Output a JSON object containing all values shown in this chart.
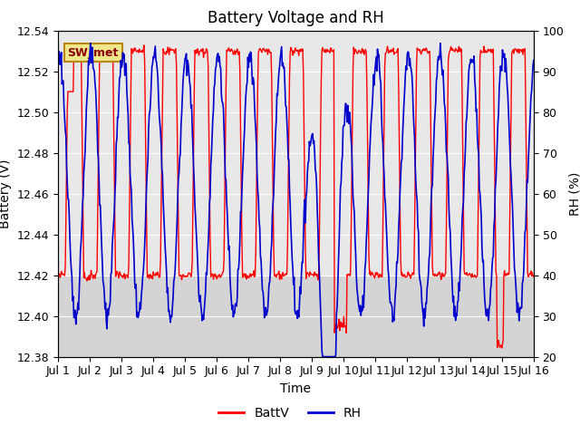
{
  "title": "Battery Voltage and RH",
  "xlabel": "Time",
  "ylabel_left": "Battery (V)",
  "ylabel_right": "RH (%)",
  "ylim_left": [
    12.38,
    12.54
  ],
  "ylim_right": [
    20,
    100
  ],
  "yticks_left": [
    12.38,
    12.4,
    12.42,
    12.44,
    12.46,
    12.48,
    12.5,
    12.52,
    12.54
  ],
  "yticks_right": [
    20,
    30,
    40,
    50,
    60,
    70,
    80,
    90,
    100
  ],
  "xtick_labels": [
    "Jul 1",
    "Jul 2",
    "Jul 3",
    "Jul 4",
    "Jul 5",
    "Jul 6",
    "Jul 7",
    "Jul 8",
    "Jul 9",
    "Jul 10",
    "Jul 11",
    "Jul 12",
    "Jul 13",
    "Jul 14",
    "Jul 15",
    "Jul 16"
  ],
  "battv_color": "#FF0000",
  "rh_color": "#0000CC",
  "outer_bg_color": "#FFFFFF",
  "plot_bg_color": "#E8E8E8",
  "inner_band_color": "#D0D0D0",
  "legend_battv": "BattV",
  "legend_rh": "RH",
  "station_label": "SW_met",
  "title_fontsize": 12,
  "axis_label_fontsize": 10,
  "tick_fontsize": 9
}
